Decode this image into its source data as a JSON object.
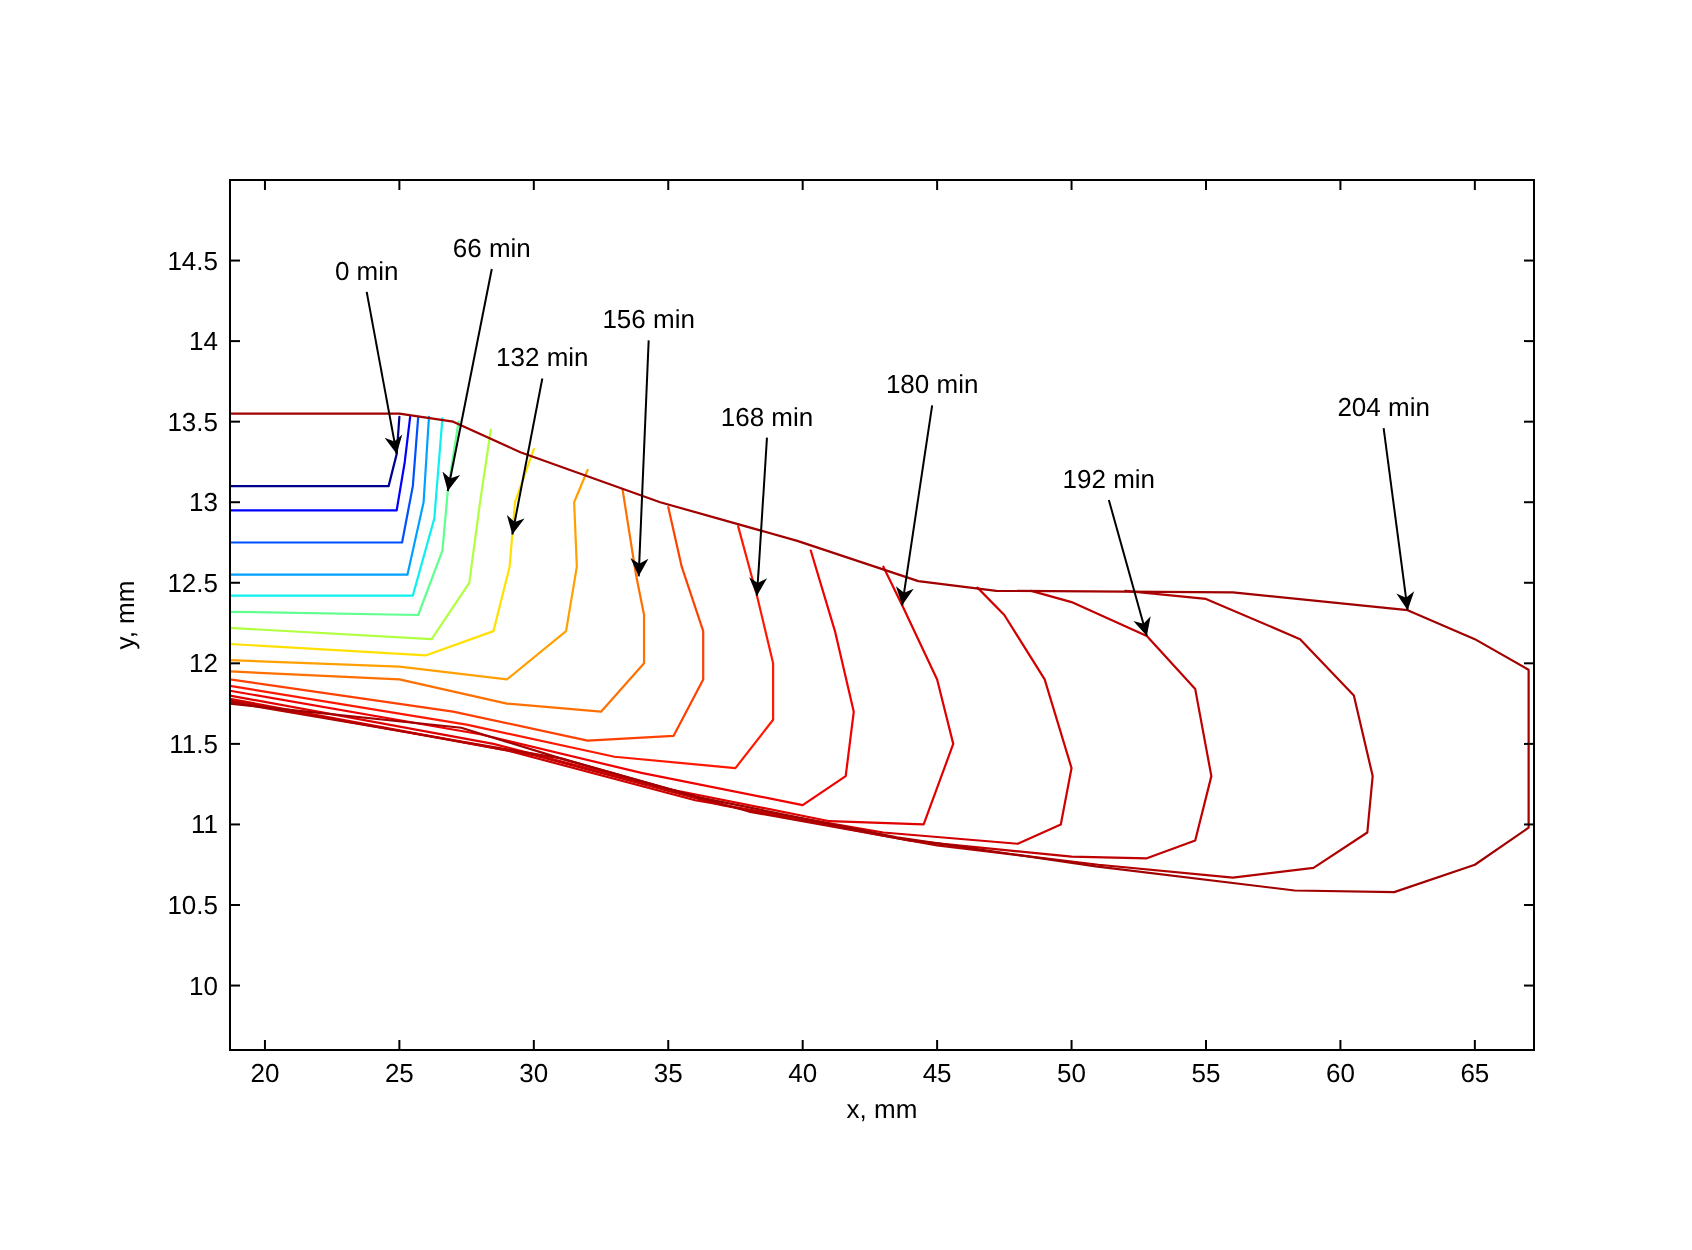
{
  "chart_data": {
    "type": "line",
    "xlabel": "x, mm",
    "ylabel": "y, mm",
    "xlim": [
      18.7,
      67.2
    ],
    "ylim": [
      9.6,
      15
    ],
    "xticks": [
      20,
      25,
      30,
      35,
      40,
      45,
      50,
      55,
      60,
      65
    ],
    "yticks": [
      10,
      10.5,
      11,
      11.5,
      12,
      12.5,
      13,
      13.5,
      14,
      14.5
    ],
    "grid": false,
    "marker": "none",
    "line_style": "solid",
    "series": [
      {
        "color": "#00008f",
        "x": [
          18.7,
          24.6,
          24.9,
          25.0
        ],
        "values": [
          13.1,
          13.1,
          13.3,
          13.53
        ]
      },
      {
        "color": "#0000ff",
        "x": [
          18.7,
          24.9,
          25.2,
          25.4
        ],
        "values": [
          12.95,
          12.95,
          13.25,
          13.53
        ]
      },
      {
        "color": "#0050ff",
        "x": [
          18.7,
          25.1,
          25.5,
          25.7
        ],
        "values": [
          12.75,
          12.75,
          13.1,
          13.53
        ]
      },
      {
        "color": "#00a0ff",
        "x": [
          18.7,
          25.3,
          25.9,
          26.1
        ],
        "values": [
          12.55,
          12.55,
          13.0,
          13.53
        ]
      },
      {
        "color": "#10efef",
        "x": [
          18.7,
          25.5,
          26.3,
          26.6
        ],
        "values": [
          12.42,
          12.42,
          12.9,
          13.52
        ]
      },
      {
        "color": "#60ff90",
        "x": [
          18.7,
          25.7,
          26.6,
          26.8,
          27.2
        ],
        "values": [
          12.32,
          12.3,
          12.7,
          13.07,
          13.5
        ]
      },
      {
        "color": "#b0ff40",
        "x": [
          18.7,
          26.2,
          27.6,
          28.0,
          28.4
        ],
        "values": [
          12.22,
          12.15,
          12.5,
          13.0,
          13.45
        ]
      },
      {
        "color": "#ffe000",
        "x": [
          18.7,
          26,
          28.5,
          29.1,
          29.3,
          30
        ],
        "values": [
          12.12,
          12.05,
          12.2,
          12.6,
          13.0,
          13.33
        ]
      },
      {
        "color": "#ffa000",
        "x": [
          18.7,
          25,
          29,
          31.2,
          31.6,
          31.5,
          32
        ],
        "values": [
          12.02,
          11.98,
          11.9,
          12.2,
          12.6,
          13.0,
          13.2
        ]
      },
      {
        "color": "#ff7000",
        "x": [
          18.7,
          25,
          29,
          32.5,
          34.1,
          34.1,
          33.8,
          33.3
        ],
        "values": [
          11.95,
          11.9,
          11.75,
          11.7,
          12.0,
          12.3,
          12.55,
          13.08
        ]
      },
      {
        "color": "#ff4000",
        "x": [
          18.7,
          27,
          32,
          35.2,
          36.3,
          36.3,
          35.5,
          35
        ],
        "values": [
          11.9,
          11.7,
          11.52,
          11.55,
          11.9,
          12.2,
          12.6,
          12.97
        ]
      },
      {
        "color": "#ff1800",
        "x": [
          18.7,
          27.5,
          33,
          37.5,
          38.9,
          38.9,
          38.3,
          37.6
        ],
        "values": [
          11.86,
          11.62,
          11.42,
          11.35,
          11.65,
          12.0,
          12.42,
          12.85
        ]
      },
      {
        "color": "#f00000",
        "x": [
          18.7,
          28,
          34,
          40,
          41.6,
          41.9,
          41.2,
          40.3
        ],
        "values": [
          11.83,
          11.56,
          11.32,
          11.12,
          11.3,
          11.7,
          12.2,
          12.7
        ]
      },
      {
        "color": "#e00000",
        "x": [
          18.7,
          28.5,
          35,
          41,
          44.5,
          45.6,
          45,
          43.7,
          43
        ],
        "values": [
          11.8,
          11.5,
          11.22,
          11.02,
          11.0,
          11.5,
          11.9,
          12.36,
          12.6
        ]
      },
      {
        "color": "#d00000",
        "x": [
          18.7,
          29,
          36,
          43,
          48,
          49.6,
          50,
          49,
          47.5,
          46.5
        ],
        "values": [
          11.78,
          11.46,
          11.15,
          10.95,
          10.88,
          11.0,
          11.35,
          11.9,
          12.3,
          12.47
        ]
      },
      {
        "color": "#c00000",
        "x": [
          18.7,
          30,
          37,
          44,
          50,
          52.8,
          54.6,
          55.2,
          54.6,
          52.8,
          50,
          48.5
        ],
        "values": [
          11.77,
          11.43,
          11.12,
          10.9,
          10.8,
          10.79,
          10.9,
          11.3,
          11.84,
          12.17,
          12.38,
          12.45
        ]
      },
      {
        "color": "#b00000",
        "x": [
          18.7,
          31,
          38,
          45,
          51,
          56,
          59,
          61,
          61.2,
          60.5,
          58.5,
          55,
          52
        ],
        "values": [
          11.76,
          11.41,
          11.08,
          10.87,
          10.75,
          10.67,
          10.73,
          10.95,
          11.3,
          11.8,
          12.15,
          12.4,
          12.45
        ]
      },
      {
        "color": "#a00000",
        "x": [
          18.7,
          27.3,
          31,
          36.1,
          43.5,
          50.9,
          58.3,
          62,
          65,
          67,
          67,
          65,
          62.5,
          56,
          47.2,
          44.3,
          39.8,
          34.7,
          29.5,
          27,
          25,
          18.7
        ],
        "values": [
          11.75,
          11.6,
          11.41,
          11.17,
          10.92,
          10.74,
          10.59,
          10.58,
          10.75,
          10.98,
          11.96,
          12.15,
          12.33,
          12.44,
          12.45,
          12.51,
          12.76,
          13.0,
          13.31,
          13.5,
          13.55,
          13.55
        ]
      }
    ],
    "annotations": [
      {
        "text": "0 min",
        "x": 24.9,
        "y": 13.3
      },
      {
        "text": "66 min",
        "x": 26.8,
        "y": 13.07
      },
      {
        "text": "132 min",
        "x": 29.2,
        "y": 12.8
      },
      {
        "text": "156 min",
        "x": 33.9,
        "y": 12.54
      },
      {
        "text": "168 min",
        "x": 38.3,
        "y": 12.42
      },
      {
        "text": "180 min",
        "x": 43.7,
        "y": 12.36
      },
      {
        "text": "192 min",
        "x": 52.8,
        "y": 12.17
      },
      {
        "text": "204 min",
        "x": 62.5,
        "y": 12.33
      }
    ]
  }
}
